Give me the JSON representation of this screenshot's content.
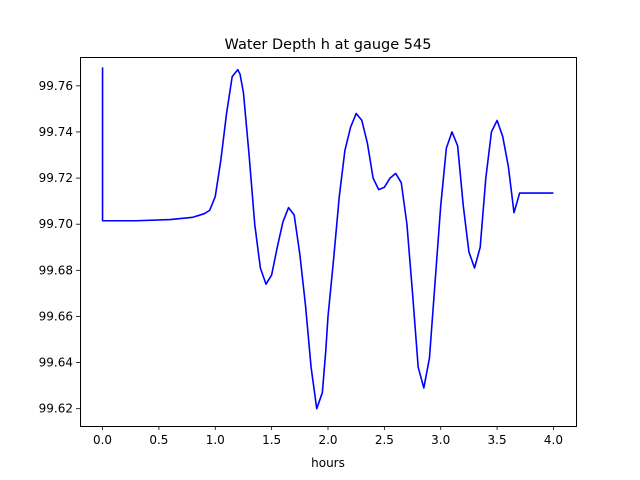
{
  "chart_data": {
    "type": "line",
    "title": "Water Depth h at gauge 545",
    "xlabel": "hours",
    "ylabel": "",
    "xlim": [
      -0.2,
      4.2
    ],
    "ylim": [
      99.6125,
      99.7725
    ],
    "xticks": [
      0.0,
      0.5,
      1.0,
      1.5,
      2.0,
      2.5,
      3.0,
      3.5,
      4.0
    ],
    "xtick_labels": [
      "0.0",
      "0.5",
      "1.0",
      "1.5",
      "2.0",
      "2.5",
      "3.0",
      "3.5",
      "4.0"
    ],
    "yticks": [
      99.62,
      99.64,
      99.66,
      99.68,
      99.7,
      99.72,
      99.74,
      99.76
    ],
    "ytick_labels": [
      "99.62",
      "99.64",
      "99.66",
      "99.68",
      "99.70",
      "99.72",
      "99.74",
      "99.76"
    ],
    "grid": false,
    "series": [
      {
        "color": "#0000ff",
        "x": [
          0.0,
          0.0,
          0.01,
          0.3,
          0.6,
          0.8,
          0.9,
          0.95,
          1.0,
          1.05,
          1.1,
          1.15,
          1.2,
          1.22,
          1.25,
          1.3,
          1.35,
          1.4,
          1.45,
          1.5,
          1.55,
          1.6,
          1.65,
          1.7,
          1.75,
          1.8,
          1.85,
          1.9,
          1.95,
          1.98,
          2.0,
          2.05,
          2.1,
          2.15,
          2.2,
          2.25,
          2.3,
          2.35,
          2.4,
          2.45,
          2.5,
          2.55,
          2.6,
          2.65,
          2.7,
          2.75,
          2.8,
          2.85,
          2.9,
          2.95,
          3.0,
          3.05,
          3.1,
          3.15,
          3.2,
          3.25,
          3.3,
          3.35,
          3.4,
          3.45,
          3.5,
          3.55,
          3.6,
          3.65,
          3.7,
          3.75,
          3.8,
          3.85,
          3.9,
          3.95,
          4.0
        ],
        "y": [
          99.768,
          99.7015,
          99.7015,
          99.7015,
          99.702,
          99.703,
          99.7045,
          99.706,
          99.712,
          99.728,
          99.748,
          99.764,
          99.767,
          99.765,
          99.757,
          99.73,
          99.7,
          99.681,
          99.674,
          99.678,
          99.69,
          99.701,
          99.7072,
          99.704,
          99.687,
          99.665,
          99.638,
          99.62,
          99.627,
          99.645,
          99.66,
          99.685,
          99.712,
          99.732,
          99.742,
          99.748,
          99.745,
          99.735,
          99.72,
          99.715,
          99.716,
          99.72,
          99.722,
          99.718,
          99.7,
          99.67,
          99.638,
          99.629,
          99.642,
          99.675,
          99.708,
          99.733,
          99.74,
          99.734,
          99.708,
          99.688,
          99.681,
          99.69,
          99.72,
          99.74,
          99.745,
          99.738,
          99.725,
          99.705,
          99.7135,
          99.7135,
          99.7135,
          99.7135,
          99.7135,
          99.7135,
          99.7135
        ]
      }
    ]
  }
}
